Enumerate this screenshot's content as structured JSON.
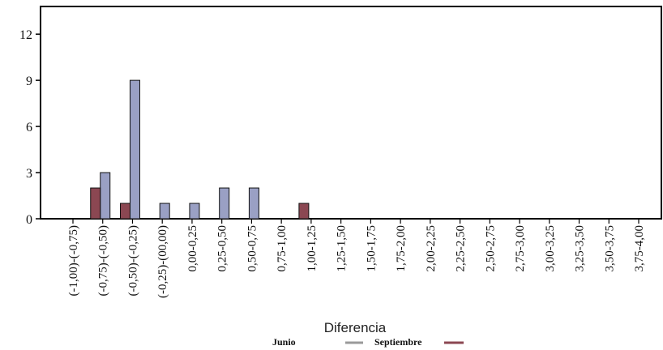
{
  "chart_data": {
    "type": "bar",
    "xlabel": "Diferencia",
    "ylabel": "",
    "ylim": [
      0,
      13.8
    ],
    "yticks": [
      0,
      3,
      6,
      9,
      12
    ],
    "categories": [
      "(-1,00)-(-0,75)",
      "(-0,75)-(-0,50)",
      "(-0,50)-(-0,25)",
      "(-0,25)-(00,00)",
      "0,00-0,25",
      "0,25-0,50",
      "0,50-0,75",
      "0,75-1,00",
      "1,00-1,25",
      "1,25-1,50",
      "1,50-1,75",
      "1,75-2,00",
      "2,00-2,25",
      "2,25-2,50",
      "2,50-2,75",
      "2,75-3,00",
      "3,00-3,25",
      "3,25-3,50",
      "3,50-3,75",
      "3,75-4,00"
    ],
    "series": [
      {
        "name": "Junio",
        "color": "#9aa0c4",
        "values": [
          0,
          3,
          9,
          1,
          1,
          2,
          2,
          0,
          0,
          0,
          0,
          0,
          0,
          0,
          0,
          0,
          0,
          0,
          0,
          0
        ]
      },
      {
        "name": "Septiembre",
        "color": "#8b4752",
        "values": [
          0,
          2,
          1,
          0,
          0,
          0,
          0,
          0,
          1,
          0,
          0,
          0,
          0,
          0,
          0,
          0,
          0,
          0,
          0,
          0
        ]
      }
    ],
    "legend": {
      "position": "bottom-center",
      "marker_color": "#9a9a9a"
    },
    "grid": false
  }
}
